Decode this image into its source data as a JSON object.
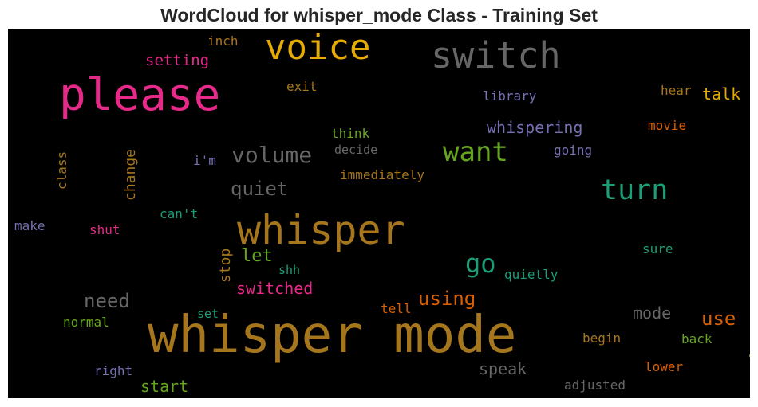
{
  "chart_data": {
    "type": "wordcloud",
    "title": "WordCloud for whisper_mode Class - Training Set",
    "background": "#000000",
    "words": [
      {
        "text": "whisper mode",
        "color": "#a6761d"
      },
      {
        "text": "please",
        "color": "#e7298a"
      },
      {
        "text": "whisper",
        "color": "#a6761d"
      },
      {
        "text": "switch",
        "color": "#666666"
      },
      {
        "text": "voice",
        "color": "#e6ab02"
      },
      {
        "text": "want",
        "color": "#66a61e"
      },
      {
        "text": "turn",
        "color": "#1b9e77"
      },
      {
        "text": "volume",
        "color": "#666666"
      },
      {
        "text": "go",
        "color": "#1b9e77"
      },
      {
        "text": "quiet",
        "color": "#666666"
      },
      {
        "text": "need",
        "color": "#666666"
      },
      {
        "text": "using",
        "color": "#d95f02"
      },
      {
        "text": "switched",
        "color": "#e7298a"
      },
      {
        "text": "let",
        "color": "#66a61e"
      },
      {
        "text": "whispering",
        "color": "#7570b3"
      },
      {
        "text": "setting",
        "color": "#e7298a"
      },
      {
        "text": "change",
        "color": "#a6761d"
      },
      {
        "text": "stop",
        "color": "#a6761d"
      },
      {
        "text": "use",
        "color": "#d95f02"
      },
      {
        "text": "talk",
        "color": "#e6ab02"
      },
      {
        "text": "mode",
        "color": "#666666"
      },
      {
        "text": "speak",
        "color": "#666666"
      },
      {
        "text": "start",
        "color": "#66a61e"
      },
      {
        "text": "library",
        "color": "#7570b3"
      },
      {
        "text": "immediately",
        "color": "#a6761d"
      },
      {
        "text": "decide",
        "color": "#666666"
      },
      {
        "text": "think",
        "color": "#66a61e"
      },
      {
        "text": "movie",
        "color": "#d95f02"
      },
      {
        "text": "going",
        "color": "#7570b3"
      },
      {
        "text": "hear",
        "color": "#a6761d"
      },
      {
        "text": "exit",
        "color": "#a6761d"
      },
      {
        "text": "inch",
        "color": "#a6761d"
      },
      {
        "text": "i'm",
        "color": "#7570b3"
      },
      {
        "text": "can't",
        "color": "#1b9e77"
      },
      {
        "text": "class",
        "color": "#a6761d"
      },
      {
        "text": "make",
        "color": "#7570b3"
      },
      {
        "text": "shut",
        "color": "#e7298a"
      },
      {
        "text": "shh",
        "color": "#1b9e77"
      },
      {
        "text": "quietly",
        "color": "#1b9e77"
      },
      {
        "text": "sure",
        "color": "#1b9e77"
      },
      {
        "text": "tell",
        "color": "#d95f02"
      },
      {
        "text": "set",
        "color": "#1b9e77"
      },
      {
        "text": "normal",
        "color": "#66a61e"
      },
      {
        "text": "begin",
        "color": "#a6761d"
      },
      {
        "text": "back",
        "color": "#66a61e"
      },
      {
        "text": "away",
        "color": "#66a61e"
      },
      {
        "text": "lower",
        "color": "#d95f02"
      },
      {
        "text": "right",
        "color": "#7570b3"
      },
      {
        "text": "adjusted",
        "color": "#666666"
      }
    ]
  }
}
